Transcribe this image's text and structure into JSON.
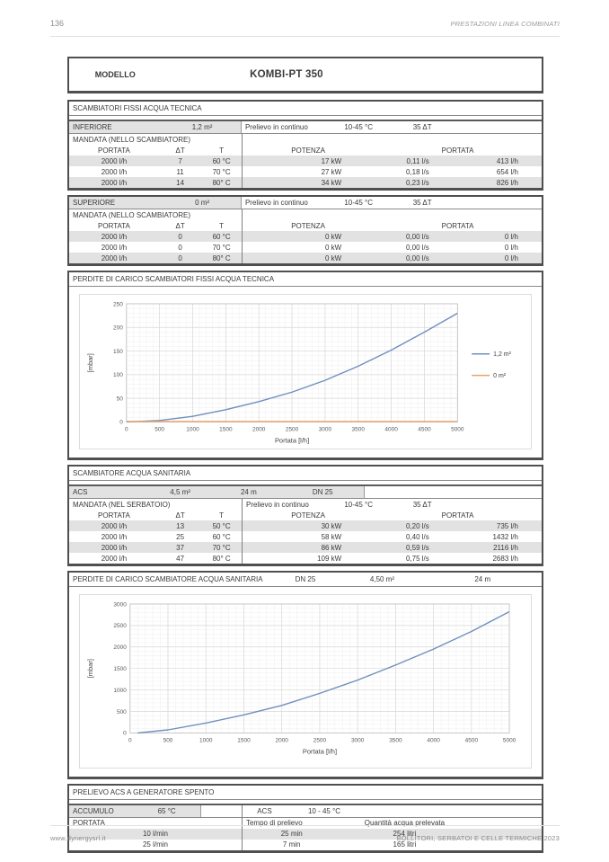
{
  "page": {
    "number": "136",
    "header_right": "PRESTAZIONI LINEA COMBINATI",
    "footer_left": "www.dynergysrl.it",
    "footer_right": "BOLLITORI, SERBATOI E CELLE TERMICHE 2023"
  },
  "model": {
    "label": "MODELLO",
    "value": "KOMBI-PT 350"
  },
  "t1": {
    "title": "SCAMBIATORI FISSI ACQUA TECNICA",
    "group": {
      "label": "INFERIORE",
      "area": "1,2 m²",
      "prelievo": "Prelievo in continuo",
      "range": "10-45 °C",
      "dt": "35 ΔT",
      "mandata": "MANDATA (NELLO SCAMBIATORE)",
      "cols": {
        "portata": "PORTATA",
        "dt": "ΔT",
        "t": "T",
        "potenza": "POTENZA",
        "portata2": "PORTATA"
      },
      "rows": [
        [
          "2000 l/h",
          "7",
          "60 °C",
          "17 kW",
          "0,11 l/s",
          "413 l/h"
        ],
        [
          "2000 l/h",
          "11",
          "70 °C",
          "27 kW",
          "0,18 l/s",
          "654 l/h"
        ],
        [
          "2000 l/h",
          "14",
          "80° C",
          "34 kW",
          "0,23 l/s",
          "826 l/h"
        ]
      ]
    }
  },
  "t2": {
    "group": {
      "label": "SUPERIORE",
      "area": "0 m²",
      "prelievo": "Prelievo in continuo",
      "range": "10-45 °C",
      "dt": "35 ΔT",
      "mandata": "MANDATA (NELLO SCAMBIATORE)",
      "cols": {
        "portata": "PORTATA",
        "dt": "ΔT",
        "t": "T",
        "potenza": "POTENZA",
        "portata2": "PORTATA"
      },
      "rows": [
        [
          "2000 l/h",
          "0",
          "60 °C",
          "0 kW",
          "0,00 l/s",
          "0 l/h"
        ],
        [
          "2000 l/h",
          "0",
          "70 °C",
          "0 kW",
          "0,00 l/s",
          "0 l/h"
        ],
        [
          "2000 l/h",
          "0",
          "80° C",
          "0 kW",
          "0,00 l/s",
          "0 l/h"
        ]
      ]
    }
  },
  "t3": {
    "title": "SCAMBIATORE ACQUA SANITARIA",
    "acs": {
      "label": "ACS",
      "area": "4,5 m²",
      "length": "24 m",
      "dn": "DN 25"
    },
    "group": {
      "mandata": "MANDATA (NEL SERBATOIO)",
      "prelievo": "Prelievo in continuo",
      "range": "10-45 °C",
      "dt": "35 ΔT",
      "cols": {
        "portata": "PORTATA",
        "dt": "ΔT",
        "t": "T",
        "potenza": "POTENZA",
        "portata2": "PORTATA"
      },
      "rows": [
        [
          "2000 l/h",
          "13",
          "50 °C",
          "30 kW",
          "0,20 l/s",
          "735 l/h"
        ],
        [
          "2000 l/h",
          "25",
          "60 °C",
          "58 kW",
          "0,40 l/s",
          "1432 l/h"
        ],
        [
          "2000 l/h",
          "37",
          "70 °C",
          "86 kW",
          "0,59 l/s",
          "2116 l/h"
        ],
        [
          "2000 l/h",
          "47",
          "80° C",
          "109 kW",
          "0,75 l/s",
          "2683 l/h"
        ]
      ]
    }
  },
  "t4": {
    "title": "PRELIEVO ACS A GENERATORE SPENTO",
    "accumulo_label": "ACCUMULO",
    "accumulo_temp": "65 °C",
    "acs_label": "ACS",
    "acs_range": "10 - 45 °C",
    "cols": {
      "portata": "PORTATA",
      "tempo": "Tempo di prelievo",
      "quantita": "Quantità acqua prelevata"
    },
    "rows": [
      [
        "10 l/min",
        "25 min",
        "254 litri"
      ],
      [
        "25 l/min",
        "7 min",
        "165 litri"
      ]
    ]
  },
  "chart_data": [
    {
      "type": "line",
      "title": "PERDITE DI CARICO SCAMBIATORI FISSI ACQUA TECNICA",
      "xlabel": "Portata [l/h]",
      "ylabel": "[mbar]",
      "xlim": [
        0,
        5000
      ],
      "ylim": [
        0,
        250
      ],
      "xticks": [
        0,
        500,
        1000,
        1500,
        2000,
        2500,
        3000,
        3500,
        4000,
        4500,
        5000
      ],
      "yticks": [
        0,
        50,
        100,
        150,
        200,
        250
      ],
      "x": [
        0,
        500,
        1000,
        1500,
        2000,
        2500,
        3000,
        3500,
        4000,
        4500,
        5000
      ],
      "series": [
        {
          "name": "1,2 m²",
          "color": "#6f8fbe",
          "values": [
            0,
            3,
            12,
            26,
            43,
            63,
            88,
            118,
            152,
            190,
            230
          ]
        },
        {
          "name": "0 m²",
          "color": "#e8a169",
          "values": [
            1,
            1,
            1,
            1,
            1,
            1,
            1,
            1,
            1,
            1,
            1
          ]
        }
      ],
      "legend_position": "right",
      "grid": {
        "x_minor": 100,
        "y_minor": 10
      }
    },
    {
      "type": "line",
      "title": "PERDITE DI CARICO SCAMBIATORE ACQUA SANITARIA",
      "annotations": [
        "DN 25",
        "4,50 m²",
        "24 m"
      ],
      "xlabel": "Portata [l/h]",
      "ylabel": "[mbar]",
      "xlim": [
        0,
        5000
      ],
      "ylim": [
        0,
        3000
      ],
      "xticks": [
        0,
        500,
        1000,
        1500,
        2000,
        2500,
        3000,
        3500,
        4000,
        4500,
        5000
      ],
      "yticks": [
        0,
        500,
        1000,
        1500,
        2000,
        2500,
        3000
      ],
      "x": [
        100,
        500,
        1000,
        1500,
        2000,
        2500,
        3000,
        3500,
        4000,
        4500,
        5000
      ],
      "series": [
        {
          "name": "ACS",
          "color": "#6f8fbe",
          "values": [
            0,
            70,
            230,
            420,
            640,
            920,
            1230,
            1580,
            1950,
            2360,
            2820
          ]
        }
      ],
      "legend_position": "none",
      "grid": {
        "x_minor": 100,
        "y_minor": 100
      }
    }
  ]
}
